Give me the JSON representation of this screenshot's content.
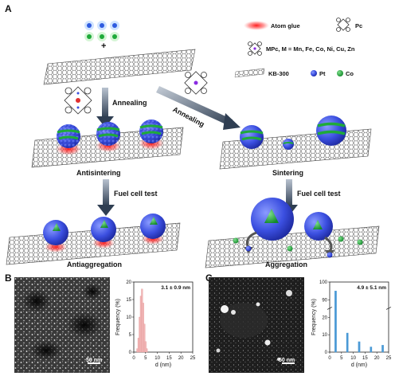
{
  "panel_a": {
    "letter": "A",
    "legend": {
      "atom_glue": "Atom glue",
      "pc": "Pc",
      "mpc": "MPc, M = Mn, Fe, Co, Ni, Cu, Zn",
      "kb300": "KB-300",
      "pt": "Pt",
      "co": "Co",
      "colors": {
        "pt": "#3b4fe0",
        "co": "#1faa3a",
        "glue": "#ff2a2a"
      }
    },
    "plus": "+",
    "annealing_left": "Annealing",
    "annealing_right": "Annealing",
    "antisintering": "Antisintering",
    "sintering": "Sintering",
    "fuel_cell_left": "Fuel cell test",
    "fuel_cell_right": "Fuel cell test",
    "antiaggregation": "Antiaggregation",
    "aggregation": "Aggregation"
  },
  "panel_b": {
    "letter": "B",
    "scale_bar": "50 nm",
    "chart_data": {
      "type": "bar",
      "title": "3.1 ± 0.9 nm",
      "xlabel": "d (nm)",
      "ylabel": "Frequency (%)",
      "xlim": [
        0,
        25
      ],
      "ylim": [
        0,
        20
      ],
      "xticks": [
        "0",
        "5",
        "10",
        "15",
        "20",
        "25"
      ],
      "yticks": [
        "0",
        "5",
        "10",
        "15",
        "20"
      ],
      "x": [
        1.5,
        2.0,
        2.5,
        3.0,
        3.5,
        4.0,
        4.5,
        5.0,
        5.5
      ],
      "values": [
        1,
        4,
        10,
        16,
        18,
        14,
        8,
        3,
        1
      ],
      "bar_color": "#f2b8b8"
    }
  },
  "panel_c": {
    "letter": "C",
    "scale_bar": "50 nm",
    "chart_data": {
      "type": "bar",
      "title": "4.9 ± 5.1 nm",
      "xlabel": "d (nm)",
      "ylabel": "Frequency (%)",
      "xlim": [
        0,
        25
      ],
      "ylim": [
        0,
        100
      ],
      "xticks": [
        "0",
        "5",
        "10",
        "15",
        "20",
        "25"
      ],
      "yticks": [
        "0",
        "10",
        "20",
        "90",
        "100"
      ],
      "x": [
        2.5,
        7.5,
        12.5,
        17.5,
        22.5
      ],
      "values": [
        95,
        11,
        6,
        3,
        4
      ],
      "bar_color": "#4b9ad6"
    }
  }
}
